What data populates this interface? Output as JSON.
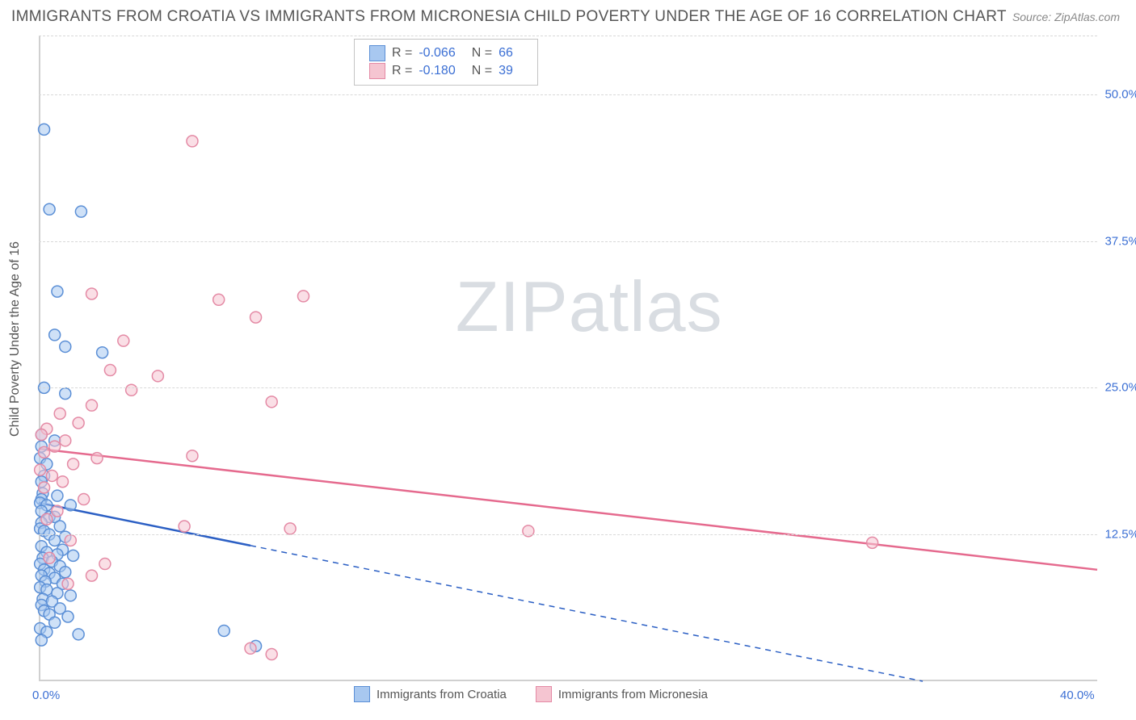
{
  "title": "IMMIGRANTS FROM CROATIA VS IMMIGRANTS FROM MICRONESIA CHILD POVERTY UNDER THE AGE OF 16 CORRELATION CHART",
  "source": "Source: ZipAtlas.com",
  "y_axis_label": "Child Poverty Under the Age of 16",
  "watermark_a": "ZIP",
  "watermark_b": "atlas",
  "chart": {
    "type": "scatter",
    "xlim": [
      0,
      40
    ],
    "ylim": [
      0,
      55
    ],
    "x_ticks": [
      {
        "v": 0,
        "label": "0.0%"
      },
      {
        "v": 40,
        "label": "40.0%"
      }
    ],
    "y_ticks": [
      {
        "v": 12.5,
        "label": "12.5%"
      },
      {
        "v": 25.0,
        "label": "25.0%"
      },
      {
        "v": 37.5,
        "label": "37.5%"
      },
      {
        "v": 50.0,
        "label": "50.0%"
      }
    ],
    "grid_color": "#d8d8d8",
    "axis_color": "#d0d0d0",
    "tick_color": "#3b6fd4",
    "background_color": "#ffffff",
    "marker_radius": 7,
    "marker_stroke_width": 1.5,
    "series": [
      {
        "name": "Immigrants from Croatia",
        "fill": "#a8c8f0",
        "fill_opacity": 0.55,
        "stroke": "#5b8fd6",
        "line_color": "#2b5fc4",
        "line_width": 2.5,
        "dash_after_x": 8,
        "R": "-0.066",
        "N": "66",
        "regression": {
          "x1": 0,
          "y1": 15.2,
          "x2": 40,
          "y2": -3.0
        },
        "points": [
          [
            0.2,
            47.0
          ],
          [
            0.4,
            40.2
          ],
          [
            1.6,
            40.0
          ],
          [
            0.7,
            33.2
          ],
          [
            0.6,
            29.5
          ],
          [
            1.0,
            28.5
          ],
          [
            2.4,
            28.0
          ],
          [
            0.2,
            25.0
          ],
          [
            1.0,
            24.5
          ],
          [
            0.1,
            21.0
          ],
          [
            0.6,
            20.5
          ],
          [
            0.1,
            20.0
          ],
          [
            0.05,
            19.0
          ],
          [
            0.3,
            18.5
          ],
          [
            0.2,
            17.5
          ],
          [
            0.1,
            17.0
          ],
          [
            0.15,
            16.0
          ],
          [
            0.7,
            15.8
          ],
          [
            0.1,
            15.5
          ],
          [
            0.05,
            15.2
          ],
          [
            1.2,
            15.0
          ],
          [
            0.3,
            15.0
          ],
          [
            0.1,
            14.5
          ],
          [
            0.4,
            14.0
          ],
          [
            0.6,
            14.0
          ],
          [
            0.1,
            13.5
          ],
          [
            0.8,
            13.2
          ],
          [
            0.05,
            13.0
          ],
          [
            0.2,
            12.8
          ],
          [
            0.4,
            12.5
          ],
          [
            1.0,
            12.3
          ],
          [
            0.6,
            12.0
          ],
          [
            0.1,
            11.5
          ],
          [
            0.9,
            11.2
          ],
          [
            0.3,
            11.0
          ],
          [
            0.7,
            10.8
          ],
          [
            1.3,
            10.7
          ],
          [
            0.15,
            10.5
          ],
          [
            0.5,
            10.2
          ],
          [
            0.05,
            10.0
          ],
          [
            0.8,
            9.8
          ],
          [
            0.2,
            9.5
          ],
          [
            1.0,
            9.3
          ],
          [
            0.4,
            9.2
          ],
          [
            0.1,
            9.0
          ],
          [
            0.6,
            8.8
          ],
          [
            0.25,
            8.5
          ],
          [
            0.9,
            8.3
          ],
          [
            0.05,
            8.0
          ],
          [
            0.3,
            7.8
          ],
          [
            0.7,
            7.5
          ],
          [
            1.2,
            7.3
          ],
          [
            0.15,
            7.0
          ],
          [
            0.5,
            6.8
          ],
          [
            0.1,
            6.5
          ],
          [
            0.8,
            6.2
          ],
          [
            0.2,
            6.0
          ],
          [
            0.4,
            5.7
          ],
          [
            1.1,
            5.5
          ],
          [
            0.6,
            5.0
          ],
          [
            0.05,
            4.5
          ],
          [
            0.3,
            4.2
          ],
          [
            1.5,
            4.0
          ],
          [
            7.0,
            4.3
          ],
          [
            8.2,
            3.0
          ],
          [
            0.1,
            3.5
          ]
        ]
      },
      {
        "name": "Immigrants from Micronesia",
        "fill": "#f5c5d1",
        "fill_opacity": 0.55,
        "stroke": "#e48aa5",
        "line_color": "#e56a8e",
        "line_width": 2.5,
        "dash_after_x": 40,
        "R": "-0.180",
        "N": "39",
        "regression": {
          "x1": 0,
          "y1": 19.8,
          "x2": 40,
          "y2": 9.5
        },
        "points": [
          [
            5.8,
            46.0
          ],
          [
            2.0,
            33.0
          ],
          [
            6.8,
            32.5
          ],
          [
            8.2,
            31.0
          ],
          [
            10.0,
            32.8
          ],
          [
            3.2,
            29.0
          ],
          [
            2.7,
            26.5
          ],
          [
            4.5,
            26.0
          ],
          [
            3.5,
            24.8
          ],
          [
            8.8,
            23.8
          ],
          [
            2.0,
            23.5
          ],
          [
            0.8,
            22.8
          ],
          [
            1.5,
            22.0
          ],
          [
            0.3,
            21.5
          ],
          [
            0.1,
            21.0
          ],
          [
            1.0,
            20.5
          ],
          [
            0.6,
            20.0
          ],
          [
            5.8,
            19.2
          ],
          [
            0.2,
            19.5
          ],
          [
            1.3,
            18.5
          ],
          [
            2.2,
            19.0
          ],
          [
            0.05,
            18.0
          ],
          [
            0.5,
            17.5
          ],
          [
            0.9,
            17.0
          ],
          [
            0.2,
            16.5
          ],
          [
            1.7,
            15.5
          ],
          [
            0.7,
            14.5
          ],
          [
            0.3,
            13.8
          ],
          [
            5.5,
            13.2
          ],
          [
            1.2,
            12.0
          ],
          [
            9.5,
            13.0
          ],
          [
            18.5,
            12.8
          ],
          [
            31.5,
            11.8
          ],
          [
            2.5,
            10.0
          ],
          [
            0.4,
            10.5
          ],
          [
            2.0,
            9.0
          ],
          [
            1.1,
            8.3
          ],
          [
            8.0,
            2.8
          ],
          [
            8.8,
            2.3
          ]
        ]
      }
    ]
  },
  "stats_labels": {
    "R": "R =",
    "N": "N ="
  }
}
